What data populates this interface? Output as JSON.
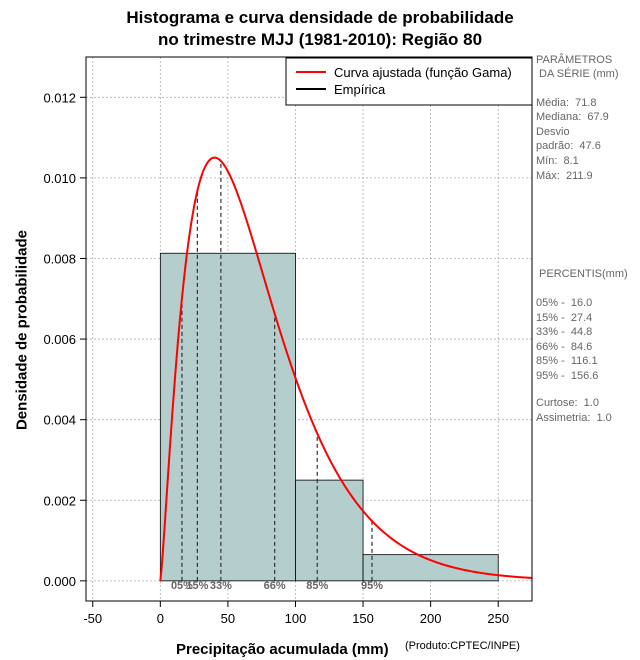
{
  "title_line1": "Histograma e curva densidade de probabilidade",
  "title_line2": "no trimestre MJJ (1981-2010): Região 80",
  "credit": "(Produto:CPTEC/INPE)",
  "params": {
    "header1": "PARÂMETROS",
    "header2": " DA SÉRIE (mm)",
    "media": "Média:  71.8",
    "mediana": "Mediana:  67.9",
    "desvio1": "Desvio",
    "desvio2": "padrão:  47.6",
    "min": "Mín:  8.1",
    "max": "Máx:  211.9"
  },
  "percentis": {
    "header": " PERCENTIS(mm)",
    "p05": "05% -  16.0",
    "p15": "15% -  27.4",
    "p33": "33% -  44.8",
    "p66": "66% -  84.6",
    "p85": "85% -  116.1",
    "p95": "95% -  156.6",
    "curtose": "Curtose:  1.0",
    "assimetria": "Assimetria:  1.0"
  },
  "chart_data": {
    "type": "bar",
    "title": "Histograma e curva densidade de probabilidade no trimestre MJJ (1981-2010): Região 80",
    "xlabel": "Precipitação acumulada (mm)",
    "ylabel": "Densidade de probabilidade",
    "xlim": [
      -55,
      275
    ],
    "ylim": [
      -0.0005,
      0.013
    ],
    "xticks": [
      -50,
      0,
      50,
      100,
      150,
      200,
      250
    ],
    "xtick_labels": [
      "-50",
      "0",
      "50",
      "100",
      "150",
      "200",
      "250"
    ],
    "yticks": [
      0,
      0.002,
      0.004,
      0.006,
      0.008,
      0.01,
      0.012
    ],
    "ytick_labels": [
      "0.000",
      "0.002",
      "0.004",
      "0.006",
      "0.008",
      "0.010",
      "0.012"
    ],
    "grid": true,
    "bins": [
      {
        "x0": 0,
        "x1": 100,
        "density": 0.00813
      },
      {
        "x0": 100,
        "x1": 150,
        "density": 0.0025
      },
      {
        "x0": 150,
        "x1": 250,
        "density": 0.00065
      }
    ],
    "bar_color": "#b4cdcd",
    "curve": {
      "name": "Curva ajustada (função Gama)",
      "color": "#ff0000",
      "shape": 2.27,
      "scale": 31.6
    },
    "legend": {
      "position": "top-right",
      "entries": [
        "Curva ajustada (função Gama)",
        "Empírica"
      ]
    },
    "percentiles": [
      {
        "label": "05%",
        "value": 16.0
      },
      {
        "label": "15%",
        "value": 27.4
      },
      {
        "label": "33%",
        "value": 44.8
      },
      {
        "label": "66%",
        "value": 84.6
      },
      {
        "label": "85%",
        "value": 116.1
      },
      {
        "label": "95%",
        "value": 156.6
      }
    ]
  }
}
